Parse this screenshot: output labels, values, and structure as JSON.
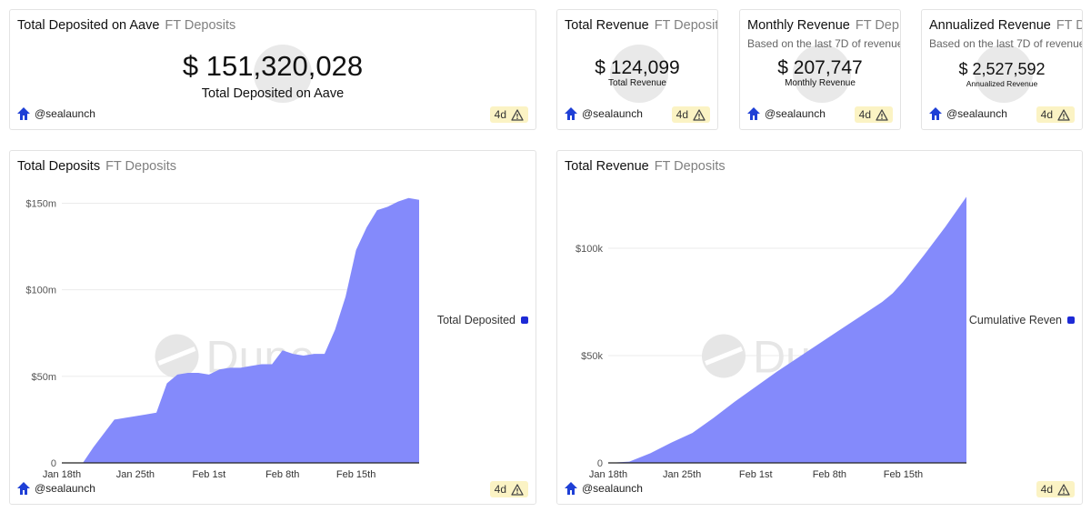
{
  "colors": {
    "accent": "#8288fb",
    "legend": "#1d2ad6",
    "badge_bg": "#fbf3c4",
    "logo": "#1e3fd6"
  },
  "author": "@sealaunch",
  "badge_age": "4d",
  "watermark_text": "Dune",
  "counters": [
    {
      "title": "Total Deposited on Aave",
      "subtitle": "FT Deposits",
      "value": "$ 151,320,028",
      "label": "Total Deposited on Aave",
      "desc": ""
    },
    {
      "title": "Total Revenue",
      "subtitle": "FT Deposits",
      "value": "$ 124,099",
      "label": "Total Revenue",
      "desc": ""
    },
    {
      "title": "Monthly Revenue",
      "subtitle": "FT Dep...",
      "value": "$ 207,747",
      "label": "Monthly Revenue",
      "desc": "Based on the last 7D of revenue"
    },
    {
      "title": "Annualized Revenue",
      "subtitle": "FT D...",
      "value": "$ 2,527,592",
      "label": "Annualized Revenue",
      "desc": "Based on the last 7D of revenue"
    }
  ],
  "chart_data": [
    {
      "type": "area",
      "title": "Total Deposits",
      "subtitle": "FT Deposits",
      "legend": [
        "Total Deposited"
      ],
      "x_ticks": [
        "Jan 18th",
        "Jan 25th",
        "Feb 1st",
        "Feb 8th",
        "Feb 15th"
      ],
      "x_tick_days": [
        0,
        7,
        14,
        21,
        28
      ],
      "y_ticks": [
        "0",
        "$50m",
        "$100m",
        "$150m"
      ],
      "y_tick_values": [
        0,
        50,
        100,
        150
      ],
      "ylim": [
        0,
        155
      ],
      "xlim": [
        0,
        34
      ],
      "y_unit": "millions USD",
      "series": [
        {
          "name": "Total Deposited",
          "x": [
            2,
            3,
            5,
            6,
            7,
            8,
            9,
            10,
            11,
            12,
            13,
            14,
            15,
            16,
            17,
            18,
            19,
            20,
            21,
            22,
            23,
            24,
            25,
            26,
            27,
            28,
            29,
            30,
            31,
            32,
            33,
            34
          ],
          "y": [
            0,
            9,
            25,
            26,
            27,
            28,
            29,
            46,
            51,
            52,
            52,
            51,
            54,
            55,
            55,
            56,
            57,
            57,
            65,
            63,
            62,
            63,
            63,
            77,
            96,
            123,
            136,
            146,
            148,
            151,
            153,
            152
          ]
        }
      ]
    },
    {
      "type": "area",
      "title": "Total Revenue",
      "subtitle": "FT Deposits",
      "legend": [
        "Cumulative Reven"
      ],
      "x_ticks": [
        "Jan 18th",
        "Jan 25th",
        "Feb 1st",
        "Feb 8th",
        "Feb 15th"
      ],
      "x_tick_days": [
        0,
        7,
        14,
        21,
        28
      ],
      "y_ticks": [
        "0",
        "$50k",
        "$100k"
      ],
      "y_tick_values": [
        0,
        50000,
        100000
      ],
      "ylim": [
        0,
        125000
      ],
      "xlim": [
        0,
        34
      ],
      "y_unit": "USD",
      "series": [
        {
          "name": "Cumulative Revenue",
          "x": [
            0,
            2,
            4,
            6,
            8,
            10,
            12,
            14,
            16,
            18,
            20,
            22,
            24,
            26,
            27,
            28,
            30,
            32,
            34
          ],
          "y": [
            0,
            600,
            4500,
            9500,
            14000,
            21000,
            28500,
            35500,
            42500,
            49000,
            55500,
            62000,
            68500,
            75000,
            79000,
            84500,
            97000,
            110000,
            124000
          ]
        }
      ]
    }
  ]
}
